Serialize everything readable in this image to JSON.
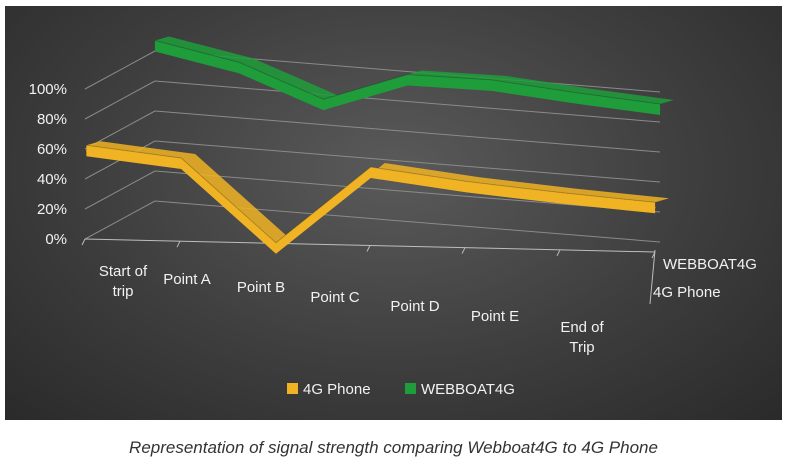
{
  "chart_data": {
    "type": "line",
    "categories": [
      "Start of trip",
      "Point A",
      "Point B",
      "Point C",
      "Point D",
      "Point E",
      "End of Trip"
    ],
    "y_ticks": [
      "0%",
      "20%",
      "40%",
      "60%",
      "80%",
      "100%"
    ],
    "ylim": [
      0,
      100
    ],
    "depth_labels": [
      "WEBBOAT4G",
      "4G Phone"
    ],
    "series": [
      {
        "name": "4G Phone",
        "values": [
          62,
          55,
          0,
          52,
          44,
          38,
          33
        ],
        "color": "#f0b323"
      },
      {
        "name": "WEBBOAT4G",
        "values": [
          107,
          97,
          77,
          98,
          99,
          95,
          92
        ],
        "color": "#1f9d3b"
      }
    ],
    "legend": [
      "4G Phone",
      "WEBBOAT4G"
    ],
    "legend_position": "bottom",
    "grid": true,
    "style": "3d-line"
  },
  "caption": "Representation of signal strength comparing Webboat4G to 4G Phone"
}
